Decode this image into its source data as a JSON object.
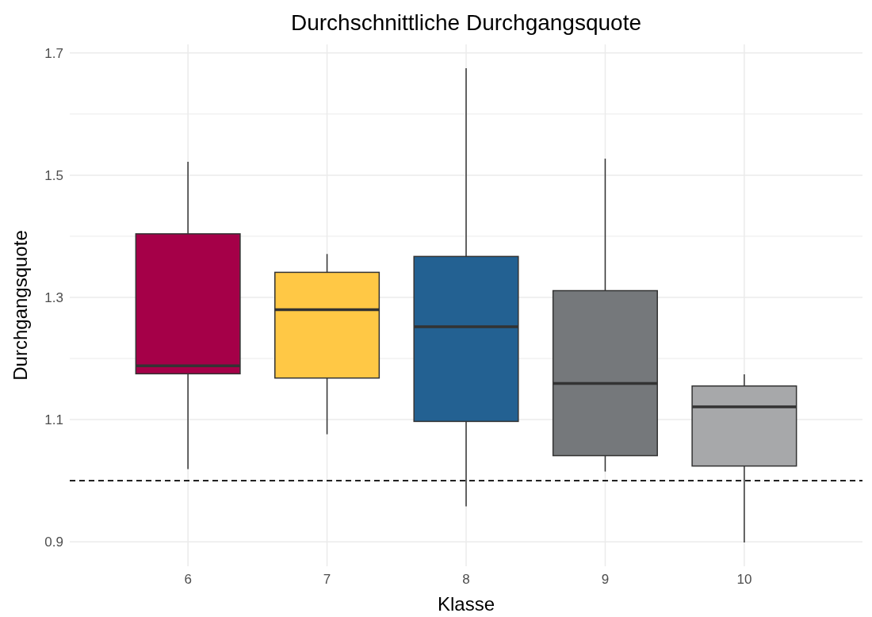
{
  "chart_data": {
    "type": "box",
    "title": "Durchschnittliche Durchgangsquote",
    "xlabel": "Klasse",
    "ylabel": "Durchgangsquote",
    "categories": [
      "6",
      "7",
      "8",
      "9",
      "10"
    ],
    "colors": [
      "#a50048",
      "#ffc845",
      "#236192",
      "#75787b",
      "#a7a8aa"
    ],
    "boxes": [
      {
        "low": 1.019,
        "q1": 1.175,
        "median": 1.188,
        "q3": 1.404,
        "high": 1.522
      },
      {
        "low": 1.076,
        "q1": 1.168,
        "median": 1.28,
        "q3": 1.341,
        "high": 1.371
      },
      {
        "low": 0.958,
        "q1": 1.097,
        "median": 1.252,
        "q3": 1.367,
        "high": 1.675
      },
      {
        "low": 1.015,
        "q1": 1.041,
        "median": 1.159,
        "q3": 1.311,
        "high": 1.527
      },
      {
        "low": 0.899,
        "q1": 1.024,
        "median": 1.121,
        "q3": 1.155,
        "high": 1.174
      }
    ],
    "ylim": [
      0.86,
      1.714
    ],
    "yticks": [
      0.9,
      {
        "value": 1.0,
        "label": null
      },
      1.1,
      {
        "value": 1.2,
        "label": null
      },
      1.3,
      {
        "value": 1.4,
        "label": null
      },
      1.5,
      {
        "value": 1.6,
        "label": null
      },
      1.7
    ],
    "grid": true,
    "ref_lines": [
      {
        "axis": "y",
        "value": 1.0,
        "line_style": "dashed",
        "color": "#000000"
      }
    ]
  }
}
